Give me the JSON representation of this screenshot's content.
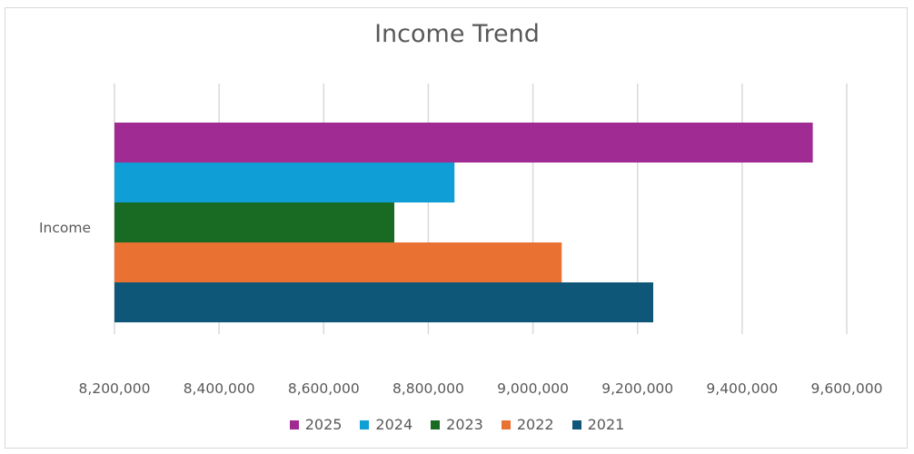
{
  "chart_data": {
    "type": "bar",
    "orientation": "horizontal",
    "title": "Income Trend",
    "categories": [
      "Income"
    ],
    "series": [
      {
        "name": "2025",
        "values": [
          9535000
        ],
        "color": "#a02b93"
      },
      {
        "name": "2024",
        "values": [
          8850000
        ],
        "color": "#0f9ed5"
      },
      {
        "name": "2023",
        "values": [
          8735000
        ],
        "color": "#196b24"
      },
      {
        "name": "2022",
        "values": [
          9055000
        ],
        "color": "#e97132"
      },
      {
        "name": "2021",
        "values": [
          9230000
        ],
        "color": "#0e5778"
      }
    ],
    "xlim": [
      8200000,
      9600000
    ],
    "xticks": [
      8200000,
      8400000,
      8600000,
      8800000,
      9000000,
      9200000,
      9400000,
      9600000
    ],
    "xtick_labels": [
      "8,200,000",
      "8,400,000",
      "8,600,000",
      "8,800,000",
      "9,000,000",
      "9,200,000",
      "9,400,000",
      "9,600,000"
    ],
    "grid": true,
    "legend_position": "bottom"
  }
}
